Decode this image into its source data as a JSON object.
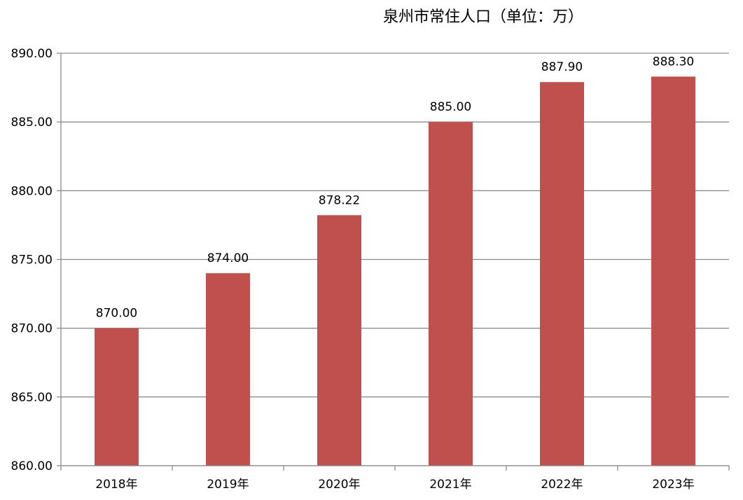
{
  "chart_data": {
    "type": "bar",
    "title": "泉州市常住人口（单位：万）",
    "categories": [
      "2018年",
      "2019年",
      "2020年",
      "2021年",
      "2022年",
      "2023年"
    ],
    "values": [
      870.0,
      874.0,
      878.22,
      885.0,
      887.9,
      888.3
    ],
    "data_labels": [
      "870.00",
      "874.00",
      "878.22",
      "885.00",
      "887.90",
      "888.30"
    ],
    "y_ticks": [
      "860.00",
      "865.00",
      "870.00",
      "875.00",
      "880.00",
      "885.00",
      "890.00"
    ],
    "ylim": [
      860,
      890
    ],
    "grid": true,
    "bar_color": "#c0504d"
  }
}
